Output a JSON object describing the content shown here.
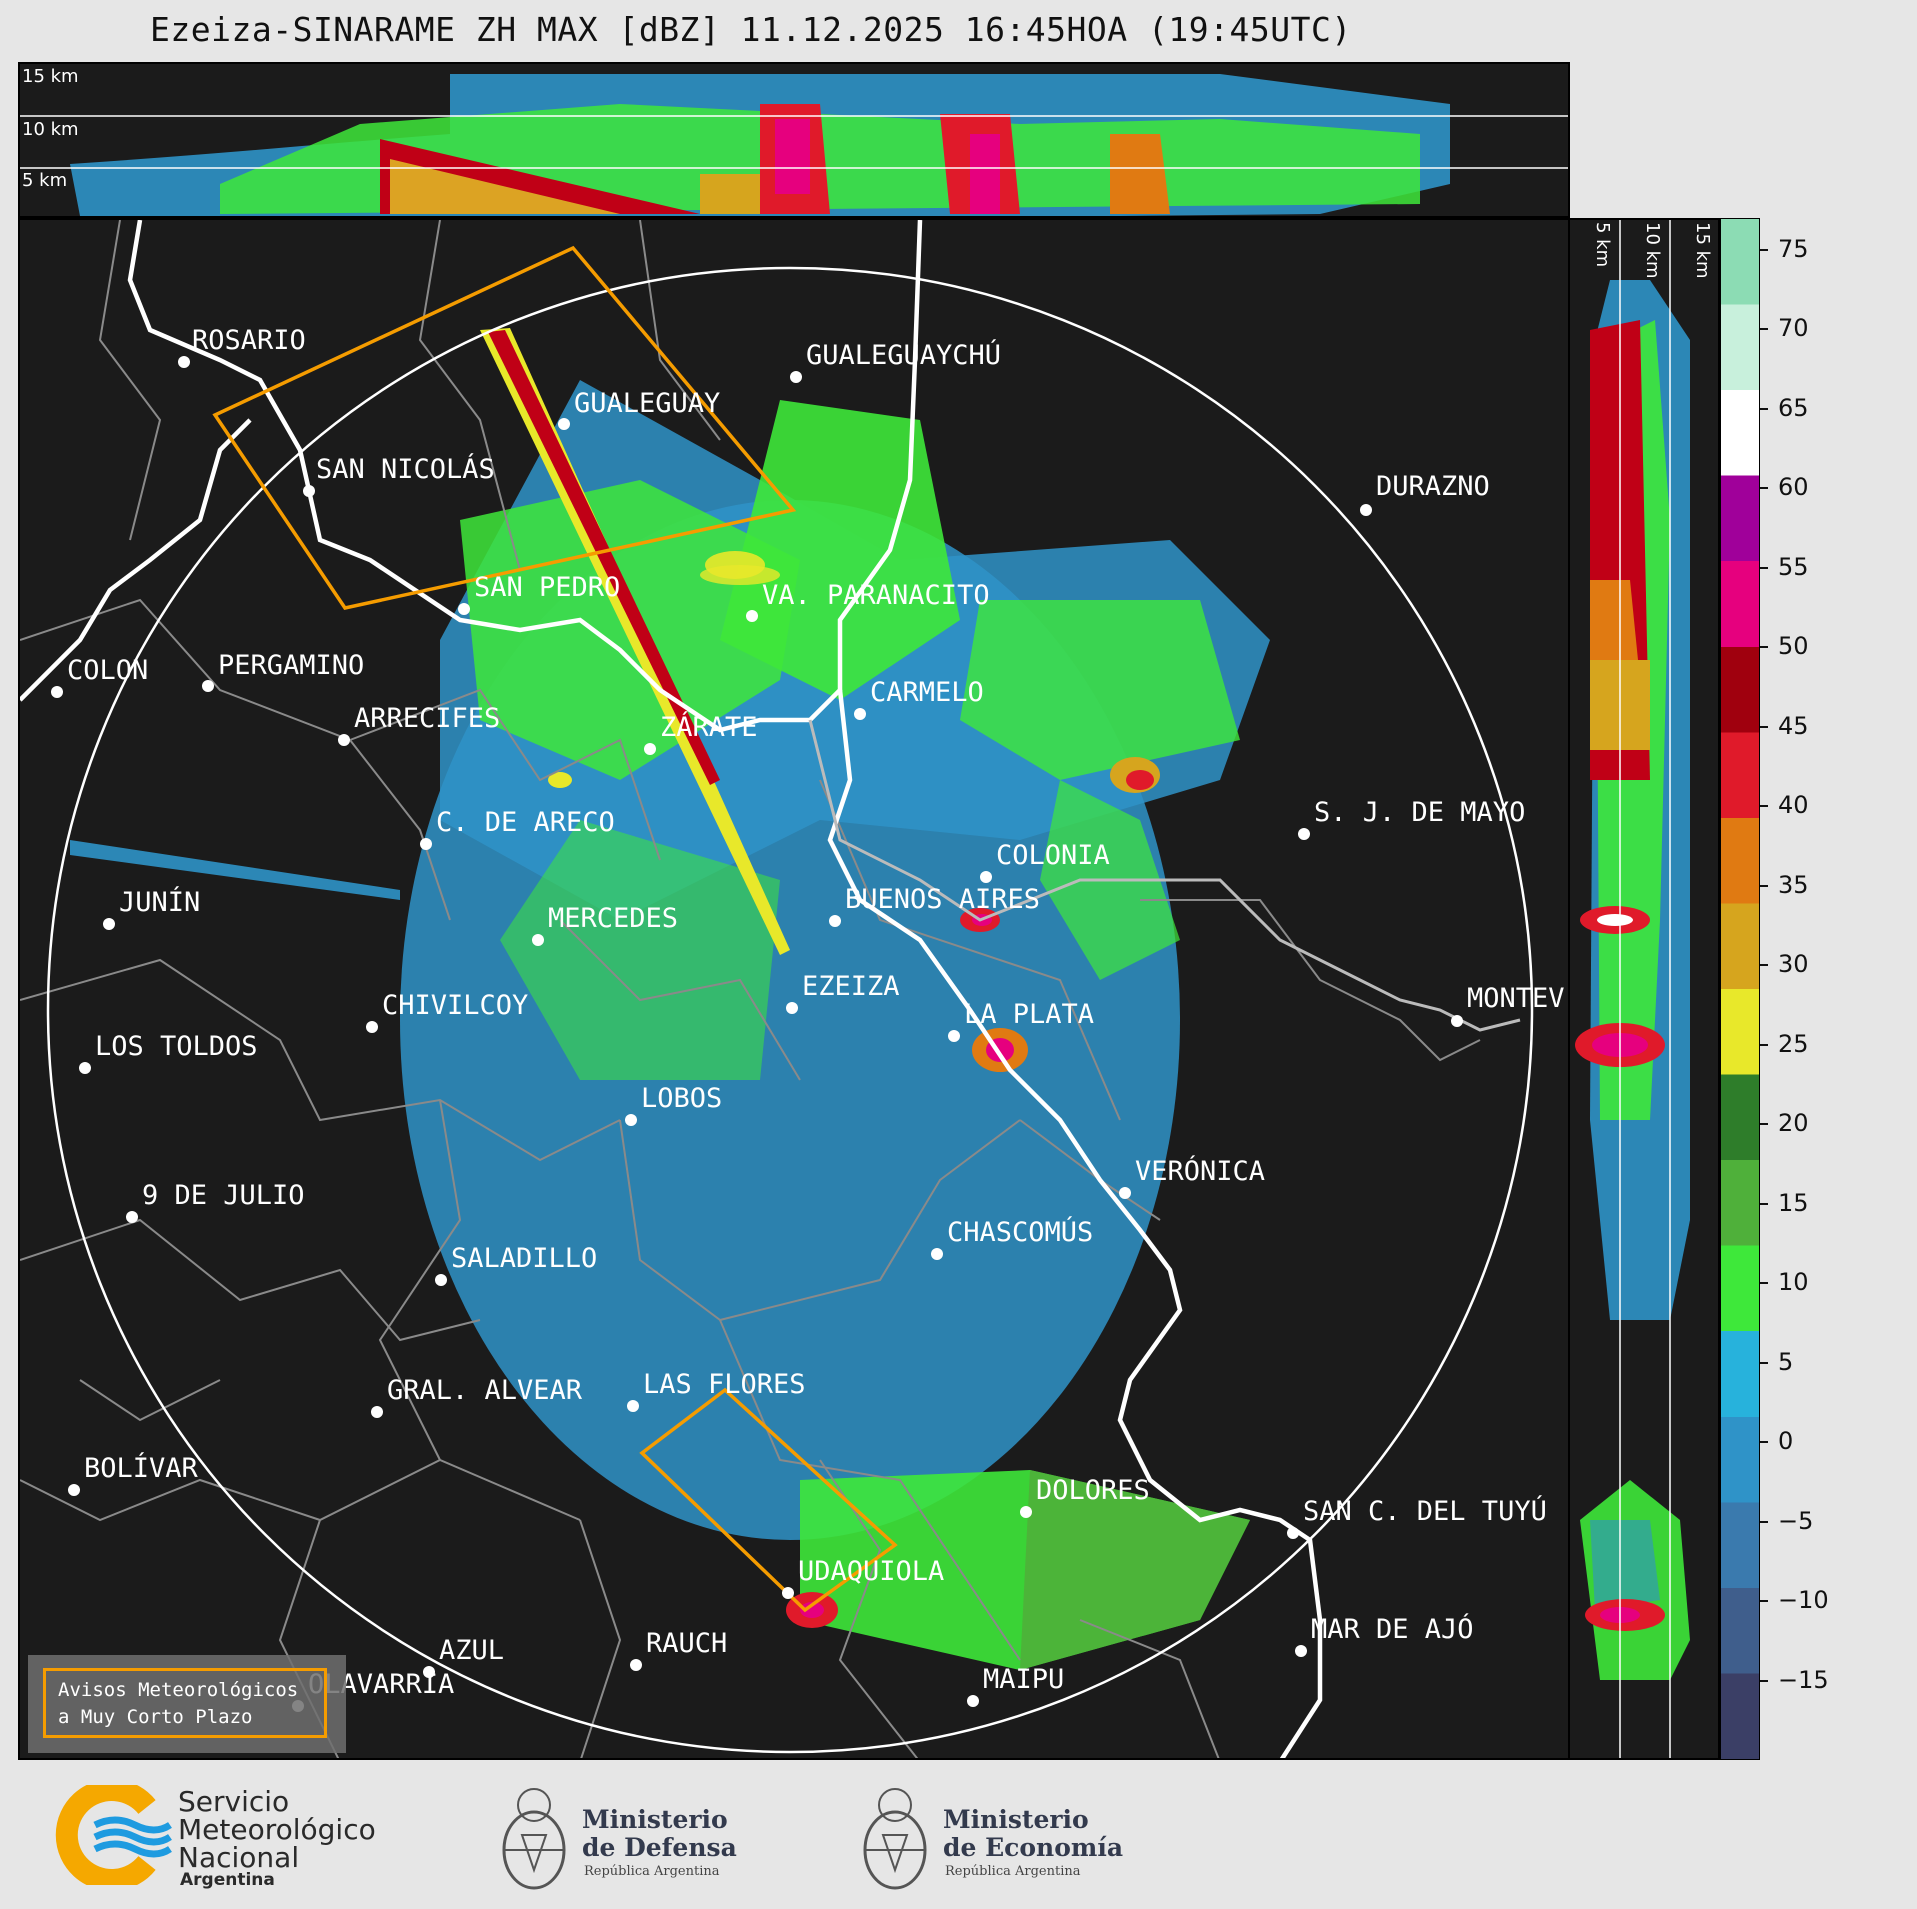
{
  "title": "Ezeiza-SINARAME ZH MAX [dBZ] 11.12.2025 16:45HOA (19:45UTC)",
  "top_panel": {
    "height_labels": [
      "15 km",
      "10 km",
      "5 km"
    ]
  },
  "side_panel": {
    "height_labels": [
      "5 km",
      "10 km",
      "15 km"
    ]
  },
  "map": {
    "cities": [
      {
        "name": "ROSARIO"
      },
      {
        "name": "GUALEGUAYCHÚ"
      },
      {
        "name": "GUALEGUAY"
      },
      {
        "name": "SAN NICOLÁS"
      },
      {
        "name": "DURAZNO"
      },
      {
        "name": "SAN PEDRO"
      },
      {
        "name": "VA. PARANACITO"
      },
      {
        "name": "COLON"
      },
      {
        "name": "PERGAMINO"
      },
      {
        "name": "CARMELO"
      },
      {
        "name": "ARRECIFES"
      },
      {
        "name": "ZÁRATE"
      },
      {
        "name": "S. J. DE MAYO"
      },
      {
        "name": "C. DE ARECO"
      },
      {
        "name": "COLONIA"
      },
      {
        "name": "JUNÍN"
      },
      {
        "name": "BUENOS AIRES"
      },
      {
        "name": "MERCEDES"
      },
      {
        "name": "EZEIZA"
      },
      {
        "name": "MONTEV"
      },
      {
        "name": "CHIVILCOY"
      },
      {
        "name": "LA PLATA"
      },
      {
        "name": "LOS TOLDOS"
      },
      {
        "name": "LOBOS"
      },
      {
        "name": "VERÓNICA"
      },
      {
        "name": "9 DE JULIO"
      },
      {
        "name": "CHASCOMÚS"
      },
      {
        "name": "SALADILLO"
      },
      {
        "name": "GRAL. ALVEAR"
      },
      {
        "name": "LAS FLORES"
      },
      {
        "name": "BOLÍVAR"
      },
      {
        "name": "DOLORES"
      },
      {
        "name": "SAN C. DEL TUYÚ"
      },
      {
        "name": "UDAQUIOLA"
      },
      {
        "name": "MAR DE AJÓ"
      },
      {
        "name": "AZUL"
      },
      {
        "name": "RAUCH"
      },
      {
        "name": "OLAVARRÍA"
      },
      {
        "name": "MAIPU"
      }
    ],
    "legend": {
      "line1": "Avisos Meteorológicos",
      "line2": "a Muy Corto Plazo"
    }
  },
  "colorbar": {
    "unit": "dBZ",
    "ticks": [
      "75",
      "70",
      "65",
      "60",
      "55",
      "50",
      "45",
      "40",
      "35",
      "30",
      "25",
      "20",
      "15",
      "10",
      "5",
      "0",
      "−5",
      "−10",
      "−15"
    ],
    "range": [
      -20,
      77
    ],
    "colors": [
      "#3b3f66",
      "#3f5e8c",
      "#3a7aae",
      "#2f93c8",
      "#27b2dc",
      "#3ee83a",
      "#4fb03a",
      "#2e7d2a",
      "#e8e82a",
      "#d6a51e",
      "#e07a12",
      "#e01a2a",
      "#a0000e",
      "#e6007e",
      "#a0009a",
      "#ffffff",
      "#c8f0dc",
      "#8cdcb4"
    ]
  },
  "footer": {
    "smn": {
      "line1": "Servicio",
      "line2": "Meteorológico",
      "line3": "Nacional",
      "line4": "Argentina"
    },
    "defensa": {
      "line1": "Ministerio",
      "line2": "de Defensa",
      "sub": "República Argentina"
    },
    "economia": {
      "line1": "Ministerio",
      "line2": "de Economía",
      "sub": "República Argentina"
    }
  },
  "colors": {
    "warning_box": "#f59c00",
    "panel_bg": "#1b1b1b",
    "range_ring": "#ffffff"
  }
}
